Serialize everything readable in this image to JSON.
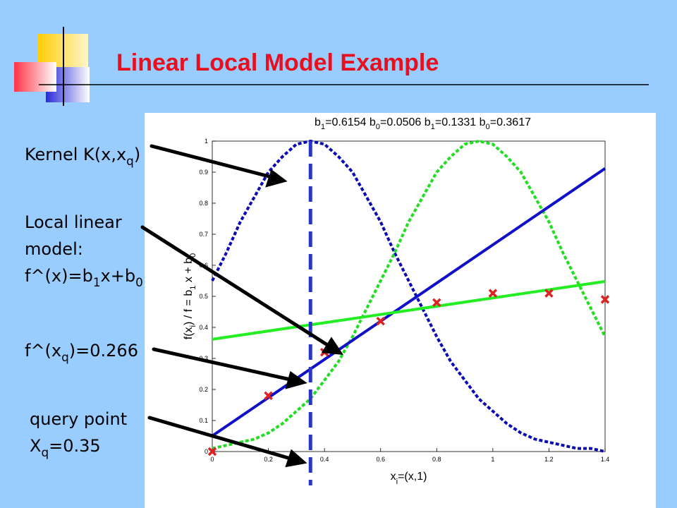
{
  "slide_title": "Linear Local Model Example",
  "annotations": [
    {
      "lines": [
        [
          "Kernel K(x,x",
          "q",
          ")"
        ]
      ]
    },
    {
      "lines": [
        [
          "Local linear"
        ],
        [
          "model:"
        ],
        [
          "f^(x)=b",
          "1",
          "x+b",
          "0"
        ]
      ]
    },
    {
      "lines": [
        [
          "f^(x",
          "q",
          ")=0.266"
        ]
      ]
    },
    {
      "lines": [
        [
          "query point"
        ],
        [
          "X",
          "q",
          "=0.35"
        ]
      ]
    }
  ],
  "chart_data": {
    "type": "line",
    "title_parts": [
      "b",
      "1",
      "=0.6154 b",
      "0",
      "=0.0506  b",
      "1",
      "=0.1331 b",
      "0",
      "=0.3617"
    ],
    "ylabel_parts": [
      "f(x",
      "i",
      ") / f = b",
      "1",
      " x + b",
      "0"
    ],
    "xlabel_parts": [
      "x",
      "i",
      "=(x,1)"
    ],
    "xlim": [
      0,
      1.4
    ],
    "ylim": [
      0,
      1
    ],
    "xticks": [
      0,
      0.2,
      0.4,
      0.6,
      0.8,
      1,
      1.2,
      1.4
    ],
    "yticks": [
      0,
      0.1,
      0.2,
      0.3,
      0.4,
      0.5,
      0.6,
      0.7,
      0.8,
      0.9,
      1
    ],
    "query_x": 0.35,
    "query_color": "#2a35c8",
    "series": [
      {
        "color": "#0a0ab4",
        "dash": true,
        "x": [
          0,
          0.05,
          0.1,
          0.15,
          0.2,
          0.25,
          0.3,
          0.35,
          0.4,
          0.45,
          0.5,
          0.55,
          0.6,
          0.65,
          0.7,
          0.75,
          0.8,
          0.85,
          0.9,
          0.95,
          1,
          1.05,
          1.1,
          1.15,
          1.2,
          1.25,
          1.3,
          1.35,
          1.4
        ],
        "values": [
          0.55,
          0.64,
          0.74,
          0.82,
          0.9,
          0.95,
          0.99,
          1,
          0.99,
          0.95,
          0.9,
          0.82,
          0.74,
          0.64,
          0.55,
          0.46,
          0.37,
          0.29,
          0.23,
          0.17,
          0.13,
          0.09,
          0.06,
          0.04,
          0.03,
          0.02,
          0.01,
          0.01,
          0
        ]
      },
      {
        "color": "#22dd22",
        "dash": true,
        "x": [
          0,
          0.05,
          0.1,
          0.15,
          0.2,
          0.25,
          0.3,
          0.35,
          0.4,
          0.45,
          0.5,
          0.55,
          0.6,
          0.65,
          0.7,
          0.75,
          0.8,
          0.85,
          0.9,
          0.95,
          1,
          1.05,
          1.1,
          1.15,
          1.2,
          1.25,
          1.3,
          1.35,
          1.4
        ],
        "values": [
          0.01,
          0.02,
          0.03,
          0.04,
          0.06,
          0.09,
          0.13,
          0.17,
          0.23,
          0.29,
          0.37,
          0.46,
          0.55,
          0.64,
          0.74,
          0.82,
          0.9,
          0.95,
          0.99,
          1,
          0.99,
          0.95,
          0.9,
          0.82,
          0.74,
          0.64,
          0.55,
          0.46,
          0.37
        ]
      },
      {
        "color": "#1010c8",
        "x": [
          0,
          1.4
        ],
        "values": [
          0.0506,
          0.912
        ]
      },
      {
        "color": "#22ee22",
        "x": [
          0,
          1.4
        ],
        "values": [
          0.3617,
          0.548
        ]
      },
      {
        "color": "#dd2222",
        "marker": "x",
        "x": [
          0,
          0.2,
          0.4,
          0.6,
          0.8,
          1,
          1.2,
          1.4
        ],
        "values": [
          0,
          0.18,
          0.32,
          0.42,
          0.48,
          0.51,
          0.51,
          0.49
        ]
      }
    ]
  }
}
